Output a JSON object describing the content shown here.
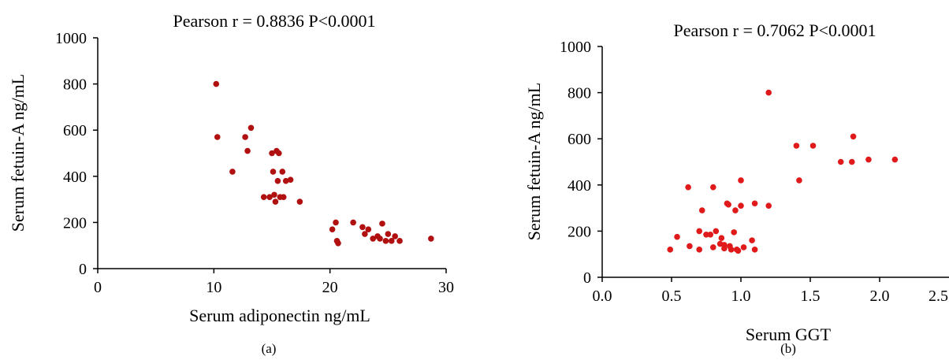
{
  "chart_data": [
    {
      "type": "scatter",
      "title": "Pearson r = 0.8836 P<0.0001",
      "xlabel": "Serum adiponectin ng/mL",
      "ylabel": "Serum fetuin-A ng/mL",
      "caption": "(a)",
      "xlim": [
        0,
        30
      ],
      "ylim": [
        0,
        1000
      ],
      "xticks": [
        "0",
        "10",
        "20",
        "30"
      ],
      "yticks": [
        "0",
        "200",
        "400",
        "600",
        "800",
        "1000"
      ],
      "x": [
        10.2,
        10.3,
        11.6,
        12.7,
        12.9,
        13.2,
        14.3,
        14.8,
        15.0,
        15.1,
        15.2,
        15.3,
        15.4,
        15.5,
        15.6,
        15.7,
        15.9,
        16.0,
        16.2,
        16.6,
        17.4,
        20.2,
        20.5,
        20.6,
        20.7,
        22.0,
        22.8,
        23.0,
        23.3,
        23.7,
        24.1,
        24.3,
        24.5,
        24.8,
        25.0,
        25.3,
        25.6,
        26.0,
        28.7
      ],
      "y": [
        800,
        570,
        420,
        570,
        510,
        610,
        310,
        310,
        500,
        420,
        320,
        290,
        510,
        380,
        500,
        310,
        420,
        310,
        380,
        385,
        290,
        170,
        200,
        120,
        110,
        200,
        180,
        150,
        170,
        130,
        140,
        130,
        195,
        120,
        150,
        120,
        140,
        120,
        130
      ],
      "marker_color": "#b01010"
    },
    {
      "type": "scatter",
      "title": "Pearson r = 0.7062 P<0.0001",
      "xlabel": "Serum GGT",
      "ylabel": "Serum fetuin-A ng/mL",
      "caption": "(b)",
      "xlim": [
        0,
        2.5
      ],
      "ylim": [
        0,
        1000
      ],
      "xticks": [
        "0.0",
        "0.5",
        "1.0",
        "1.5",
        "2.0",
        "2.5"
      ],
      "yticks": [
        "0",
        "200",
        "400",
        "600",
        "800",
        "1000"
      ],
      "x": [
        0.49,
        0.54,
        0.62,
        0.63,
        0.7,
        0.7,
        0.72,
        0.75,
        0.78,
        0.8,
        0.8,
        0.82,
        0.85,
        0.86,
        0.88,
        0.88,
        0.9,
        0.91,
        0.92,
        0.93,
        0.95,
        0.96,
        0.97,
        0.98,
        1.0,
        1.0,
        1.02,
        1.08,
        1.1,
        1.1,
        1.2,
        1.2,
        1.4,
        1.42,
        1.52,
        1.72,
        1.8,
        1.81,
        1.92,
        2.11
      ],
      "y": [
        120,
        175,
        390,
        135,
        120,
        200,
        290,
        185,
        185,
        390,
        130,
        200,
        145,
        170,
        140,
        125,
        320,
        315,
        135,
        120,
        195,
        290,
        120,
        115,
        310,
        420,
        130,
        160,
        320,
        120,
        310,
        800,
        570,
        420,
        570,
        500,
        500,
        610,
        510,
        510
      ],
      "marker_color": "#e01a1a"
    }
  ]
}
